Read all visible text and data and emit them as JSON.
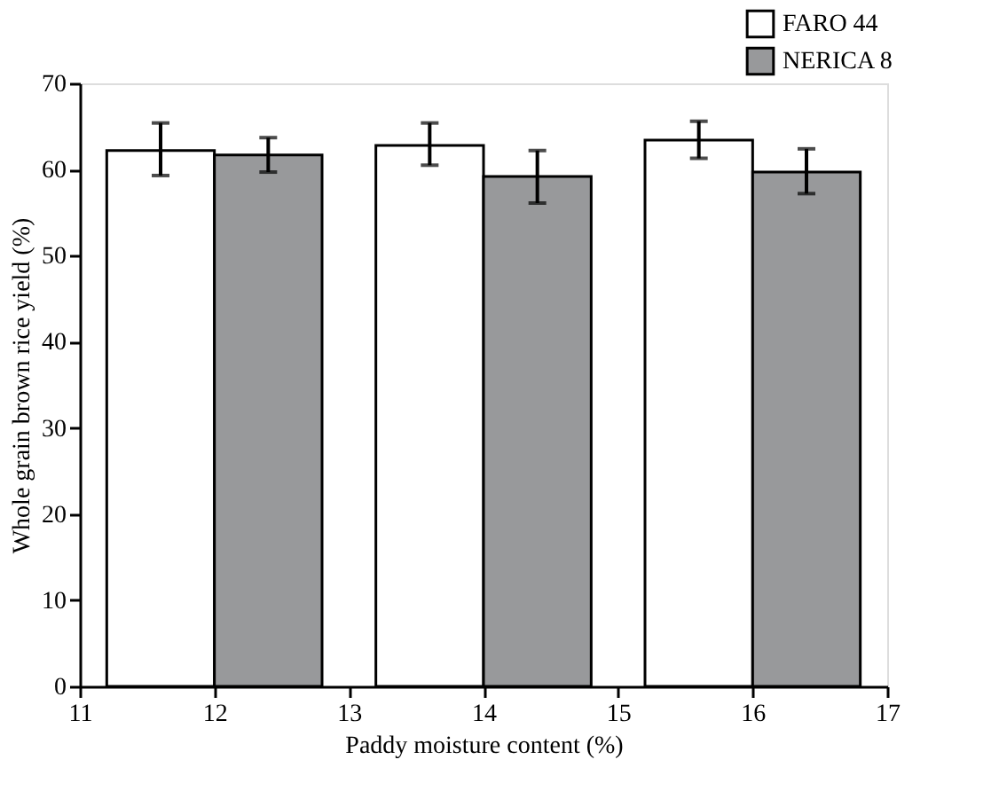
{
  "chart_data": {
    "type": "bar",
    "xlabel": "Paddy moisture content (%)",
    "ylabel": "Whole grain brown rice yield (%)",
    "xlim": [
      11,
      17
    ],
    "xticks": [
      11,
      12,
      13,
      14,
      15,
      16,
      17
    ],
    "ylim": [
      0,
      70
    ],
    "yticks": [
      0,
      10,
      20,
      30,
      40,
      50,
      60,
      70
    ],
    "series": [
      {
        "name": "FARO 44",
        "color": "#ffffff",
        "x": [
          11.6,
          13.6,
          15.6
        ],
        "values": [
          62.2,
          62.8,
          63.4
        ],
        "errors": [
          [
            59.3,
            65.4
          ],
          [
            60.5,
            65.4
          ],
          [
            61.3,
            65.6
          ]
        ]
      },
      {
        "name": "NERICA 8",
        "color": "#98999b",
        "x": [
          12.4,
          14.4,
          16.4
        ],
        "values": [
          61.7,
          59.2,
          59.7
        ],
        "errors": [
          [
            59.7,
            63.7
          ],
          [
            56.1,
            62.2
          ],
          [
            57.2,
            62.4
          ]
        ]
      }
    ],
    "grid": false,
    "legend": "top right"
  }
}
